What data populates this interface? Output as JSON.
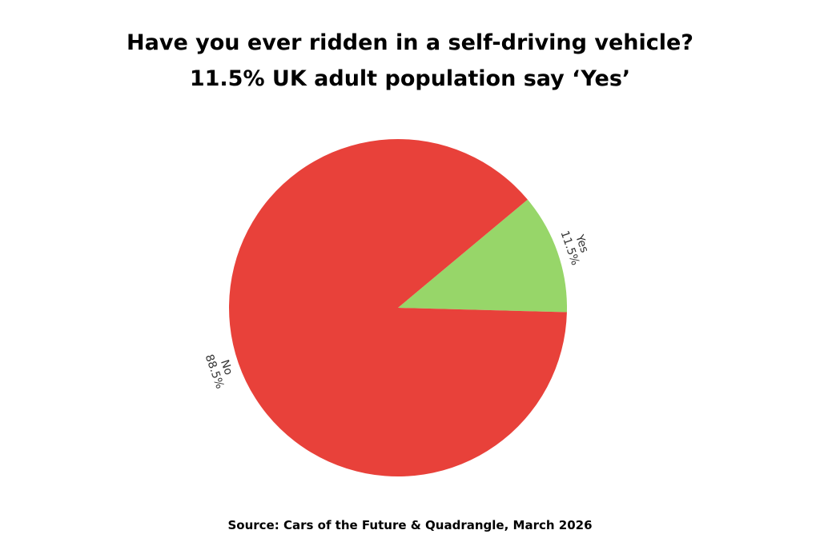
{
  "chart_data": {
    "type": "pie",
    "title": "Have you ever ridden in a self-driving vehicle?",
    "subtitle": "11.5% UK adult population say ‘Yes’",
    "categories": [
      "Yes",
      "No"
    ],
    "values": [
      11.5,
      88.5
    ],
    "value_labels": [
      "11.5%",
      "88.5%"
    ],
    "colors": [
      "#97d669",
      "#e8413a"
    ],
    "source": "Source: Cars of the Future & Quadrangle, March 2026"
  }
}
